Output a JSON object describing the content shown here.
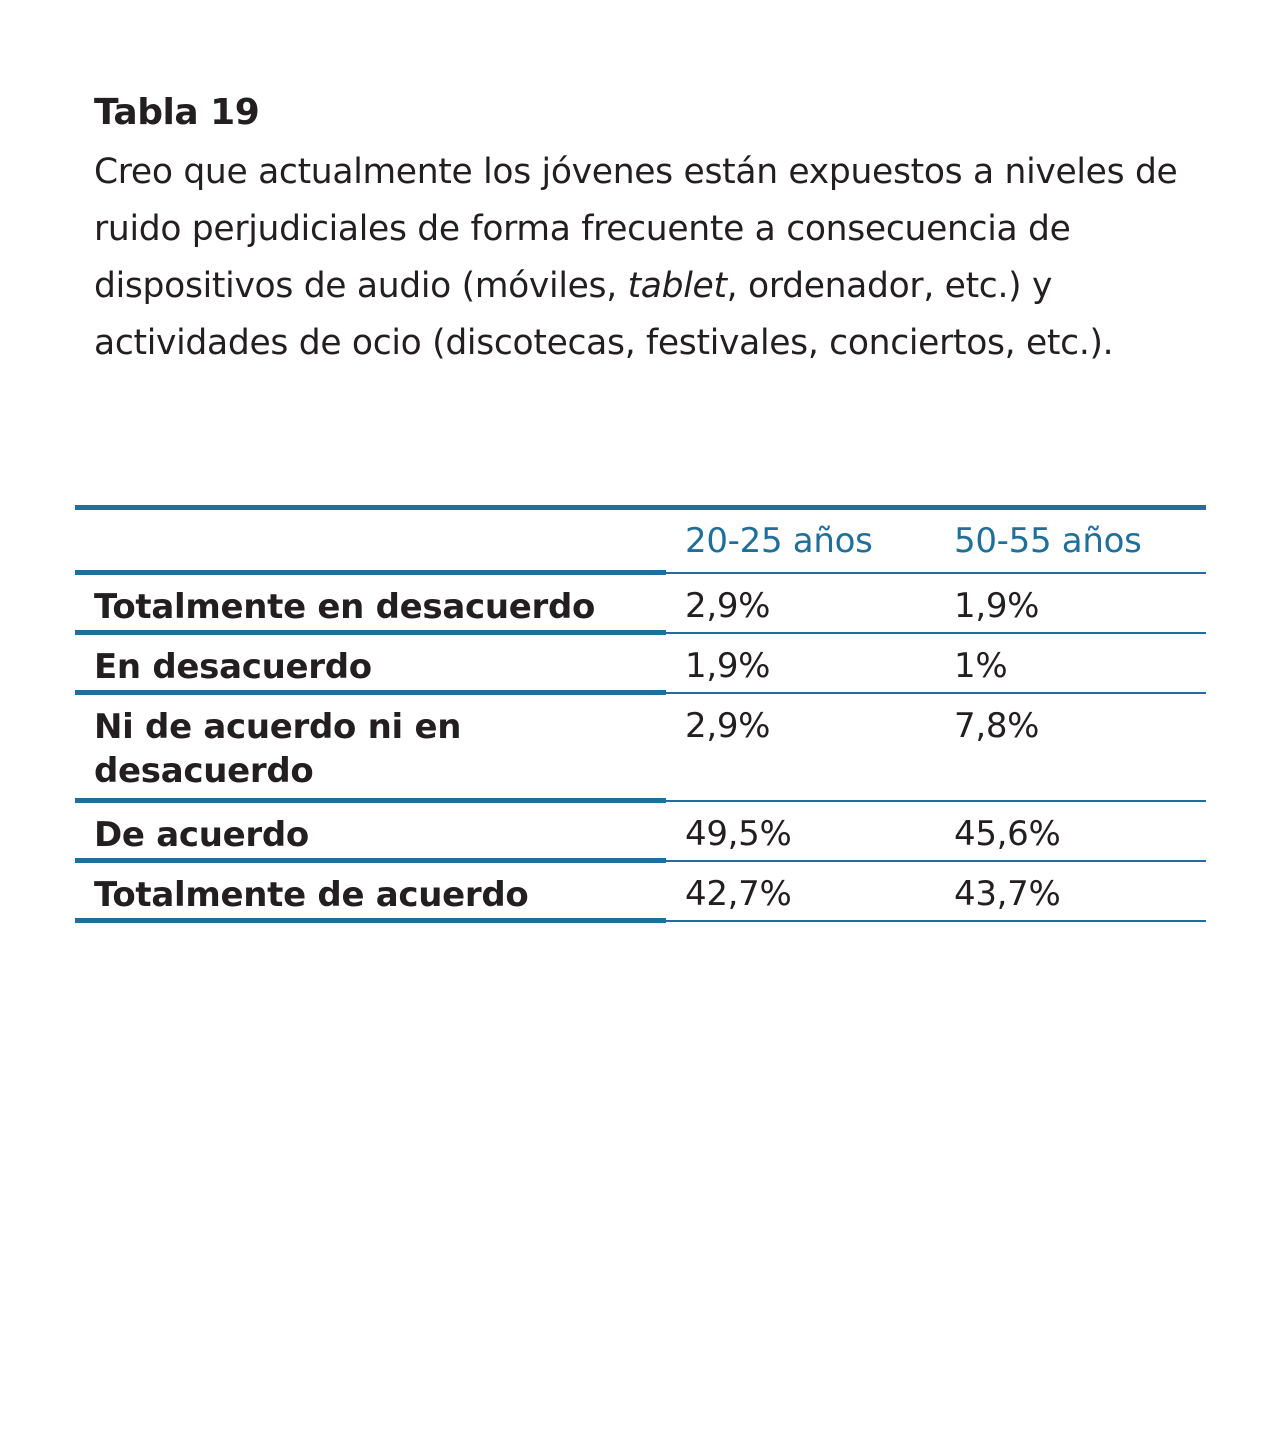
{
  "title": "Tabla 19",
  "description": {
    "before_italic": "Creo que actualmente los jóvenes están expuestos a niveles de ruido perjudiciales de forma frecuente a consecuencia de dispositivos de audio (móviles, ",
    "italic": "tablet",
    "after_italic": ", ordenador, etc.) y actividades de ocio (discotecas, festivales, conciertos, etc.)."
  },
  "table": {
    "columns": [
      "",
      "20-25 años",
      "50-55 años"
    ],
    "rows": [
      {
        "label": "Totalmente en desacuerdo",
        "values": [
          "2,9%",
          "1,9%"
        ]
      },
      {
        "label": "En desacuerdo",
        "values": [
          "1,9%",
          "1%"
        ]
      },
      {
        "label": "Ni de acuerdo ni en desacuerdo",
        "values": [
          "2,9%",
          "7,8%"
        ]
      },
      {
        "label": "De acuerdo",
        "values": [
          "49,5%",
          "45,6%"
        ]
      },
      {
        "label": "Totalmente de acuerdo",
        "values": [
          "42,7%",
          "43,7%"
        ]
      }
    ]
  },
  "colors": {
    "accent": "#1f6f9a",
    "text": "#231f20"
  }
}
